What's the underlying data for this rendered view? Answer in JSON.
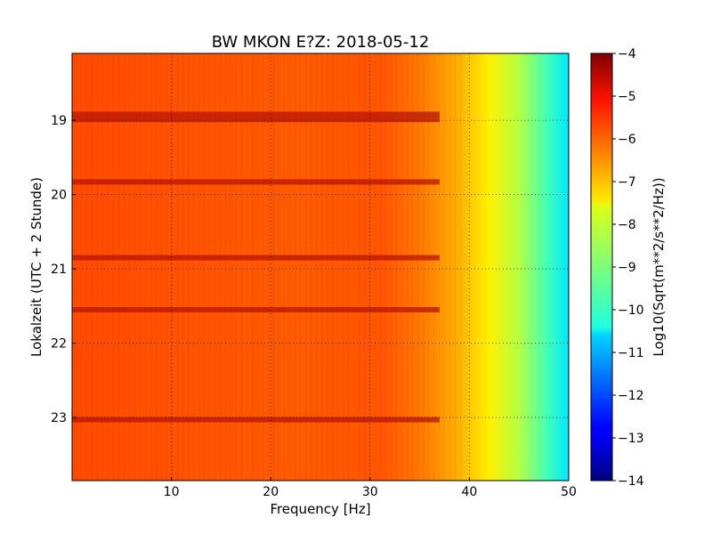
{
  "chart_data": {
    "type": "heatmap",
    "title": "BW MKON E?Z: 2018-05-12",
    "xlabel": "Frequency [Hz]",
    "ylabel": "Lokalzeit (UTC + 2 Stunde)",
    "xlim": [
      0,
      50
    ],
    "ylim": [
      18.1,
      23.85
    ],
    "x_ticks": [
      10,
      20,
      30,
      40,
      50
    ],
    "y_ticks": [
      19,
      20,
      21,
      22,
      23
    ],
    "grid": true,
    "colorbar": {
      "label": "Log10(Sqrt(m**2/s**2/Hz))",
      "range": [
        -14,
        -4
      ],
      "ticks": [
        -4,
        -5,
        -6,
        -7,
        -8,
        -9,
        -10,
        -11,
        -12,
        -13,
        -14
      ],
      "colormap": "jet"
    },
    "description_values": {
      "broadband_level_below_35Hz": -5.9,
      "level_at_40Hz": -7.0,
      "level_at_45Hz": -8.6,
      "level_at_50Hz": -10.2
    },
    "strong_bands_hour": [
      18.92,
      18.99,
      19.83,
      20.85,
      21.55,
      23.03
    ]
  }
}
